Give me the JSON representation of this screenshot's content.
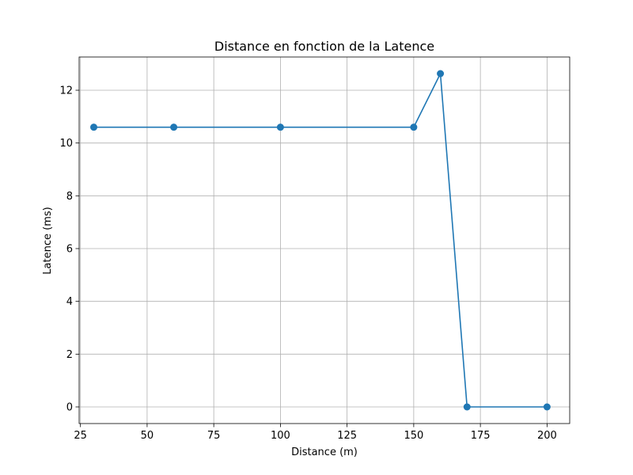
{
  "chart_data": {
    "type": "line",
    "title": "Distance en fonction de la Latence",
    "xlabel": "Distance (m)",
    "ylabel": "Latence (ms)",
    "xlim": [
      24.5,
      208.5
    ],
    "ylim": [
      -0.63,
      13.26
    ],
    "xticks": [
      25,
      50,
      75,
      100,
      125,
      150,
      175,
      200
    ],
    "yticks": [
      0,
      2,
      4,
      6,
      8,
      10,
      12
    ],
    "grid": true,
    "legend": "none",
    "series": [
      {
        "color": "#1f77b4",
        "marker": "circle",
        "points": [
          {
            "x": 30,
            "y": 10.6
          },
          {
            "x": 60,
            "y": 10.6
          },
          {
            "x": 100,
            "y": 10.6
          },
          {
            "x": 150,
            "y": 10.6
          },
          {
            "x": 160,
            "y": 12.63
          },
          {
            "x": 170,
            "y": 0
          },
          {
            "x": 200,
            "y": 0
          }
        ]
      }
    ]
  }
}
